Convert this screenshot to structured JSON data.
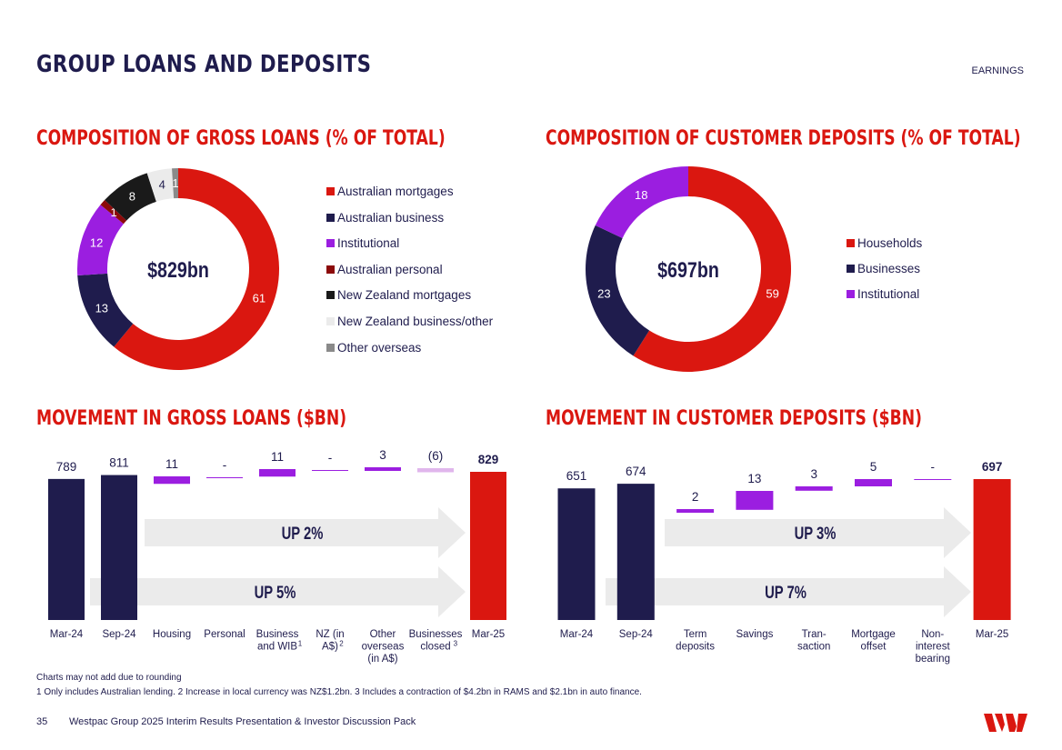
{
  "header": {
    "title": "GROUP LOANS AND DEPOSITS",
    "section": "EARNINGS"
  },
  "colors": {
    "red": "#da1710",
    "navy": "#1f1c4d",
    "purple": "#9b1ee0",
    "darkred": "#8c0a0a",
    "black": "#1a1a1a",
    "light_grey": "#ebebeb",
    "grey": "#8a8a8a",
    "light_purple": "#e0b6ec"
  },
  "loans_composition": {
    "title": "COMPOSITION OF GROSS LOANS (% OF TOTAL)",
    "center_label": "$829bn"
  },
  "deposits_composition": {
    "title": "COMPOSITION OF CUSTOMER DEPOSITS (% OF TOTAL)",
    "center_label": "$697bn"
  },
  "loans_movement": {
    "title": "MOVEMENT IN GROSS LOANS ($BN)",
    "arrow_short": "UP 2%",
    "arrow_long": "UP 5%"
  },
  "deposits_movement": {
    "title": "MOVEMENT IN CUSTOMER DEPOSITS ($BN)",
    "arrow_short": "UP 3%",
    "arrow_long": "UP 7%"
  },
  "chart_data": [
    {
      "type": "pie",
      "title": "COMPOSITION OF GROSS LOANS (% OF TOTAL)",
      "center_label": "$829bn",
      "legend_position": "right",
      "categories": [
        "Australian mortgages",
        "Australian business",
        "Institutional",
        "Australian personal",
        "New Zealand mortgages",
        "New Zealand business/other",
        "Other overseas"
      ],
      "values": [
        61,
        13,
        12,
        1,
        8,
        4,
        1
      ],
      "colors": [
        "#da1710",
        "#1f1c4d",
        "#9b1ee0",
        "#8c0a0a",
        "#1a1a1a",
        "#ebebeb",
        "#8a8a8a"
      ]
    },
    {
      "type": "pie",
      "title": "COMPOSITION OF CUSTOMER DEPOSITS (% OF TOTAL)",
      "center_label": "$697bn",
      "legend_position": "right",
      "categories": [
        "Households",
        "Businesses",
        "Institutional"
      ],
      "values": [
        59,
        23,
        18
      ],
      "colors": [
        "#da1710",
        "#1f1c4d",
        "#9b1ee0"
      ]
    },
    {
      "type": "bar",
      "title": "MOVEMENT IN GROSS LOANS ($BN)",
      "ylim": [
        0,
        829
      ],
      "bars": [
        {
          "label": "Mar-24",
          "value": 789,
          "value_label": "789",
          "kind": "total",
          "color": "#1f1c4d"
        },
        {
          "label": "Sep-24",
          "value": 811,
          "value_label": "811",
          "kind": "total",
          "color": "#1f1c4d"
        },
        {
          "label": "Housing",
          "value": 11,
          "value_label": "11",
          "kind": "delta",
          "color": "#9b1ee0"
        },
        {
          "label": "Personal",
          "value": 0,
          "value_label": "-",
          "kind": "delta",
          "color": "#9b1ee0"
        },
        {
          "label": "Business and WIB",
          "sup": "1",
          "value": 11,
          "value_label": "11",
          "kind": "delta",
          "color": "#9b1ee0"
        },
        {
          "label": "NZ (in A$)",
          "sup": "2",
          "value": 0,
          "value_label": "-",
          "kind": "delta",
          "color": "#9b1ee0"
        },
        {
          "label": "Other overseas (in A$)",
          "value": 3,
          "value_label": "3",
          "kind": "delta",
          "color": "#9b1ee0"
        },
        {
          "label": "Businesses closed",
          "sup": "3",
          "value": -6,
          "value_label": "(6)",
          "kind": "delta",
          "color": "#e0b6ec"
        },
        {
          "label": "Mar-25",
          "value": 829,
          "value_label": "829",
          "kind": "total",
          "color": "#da1710",
          "bold": true
        }
      ]
    },
    {
      "type": "bar",
      "title": "MOVEMENT IN CUSTOMER DEPOSITS ($BN)",
      "ylim": [
        0,
        697
      ],
      "bars": [
        {
          "label": "Mar-24",
          "value": 651,
          "value_label": "651",
          "kind": "total",
          "color": "#1f1c4d"
        },
        {
          "label": "Sep-24",
          "value": 674,
          "value_label": "674",
          "kind": "total",
          "color": "#1f1c4d"
        },
        {
          "label": "Term deposits",
          "value": 2,
          "value_label": "2",
          "kind": "delta",
          "color": "#9b1ee0"
        },
        {
          "label": "Savings",
          "value": 13,
          "value_label": "13",
          "kind": "delta",
          "color": "#9b1ee0"
        },
        {
          "label": "Tran- saction",
          "value": 3,
          "value_label": "3",
          "kind": "delta",
          "color": "#9b1ee0"
        },
        {
          "label": "Mortgage offset",
          "value": 5,
          "value_label": "5",
          "kind": "delta",
          "color": "#9b1ee0"
        },
        {
          "label": "Non- interest bearing",
          "value": 0,
          "value_label": "-",
          "kind": "delta",
          "color": "#9b1ee0"
        },
        {
          "label": "Mar-25",
          "value": 697,
          "value_label": "697",
          "kind": "total",
          "color": "#da1710",
          "bold": true
        }
      ]
    }
  ],
  "footnotes": {
    "line1": "Charts may not add due to rounding",
    "line2": "1 Only includes Australian lending. 2 Increase in local currency was NZ$1.2bn. 3 Includes a contraction of $4.2bn in RAMS and $2.1bn in auto finance."
  },
  "footer": {
    "page_number": "35",
    "document": "Westpac Group 2025 Interim Results Presentation & Investor Discussion Pack",
    "logo_icon": "westpac-w-logo"
  }
}
